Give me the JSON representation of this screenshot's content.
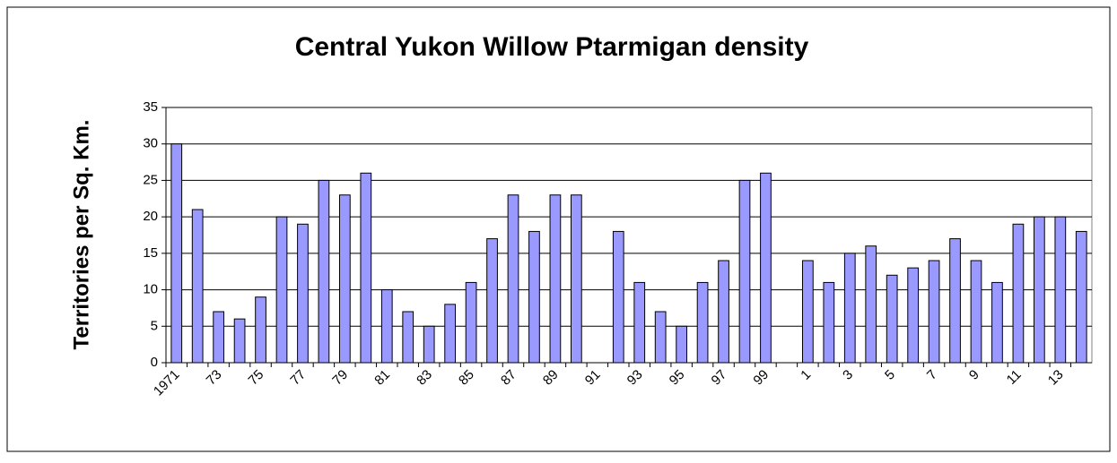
{
  "chart_data": {
    "type": "bar",
    "title": "Central Yukon Willow Ptarmigan density",
    "y_label": "Territories per Sq. Km.",
    "categories": [
      "1971",
      null,
      "73",
      null,
      "75",
      null,
      "77",
      null,
      "79",
      null,
      "81",
      null,
      "83",
      null,
      "85",
      null,
      "87",
      null,
      "89",
      null,
      "91",
      null,
      "93",
      null,
      "95",
      null,
      "97",
      null,
      "99",
      null,
      "1",
      null,
      "3",
      null,
      "5",
      null,
      "7",
      null,
      "9",
      null,
      "11",
      null,
      "13",
      null
    ],
    "values": [
      30,
      21,
      7,
      6,
      9,
      20,
      19,
      25,
      23,
      26,
      10,
      7,
      5,
      8,
      11,
      17,
      23,
      18,
      23,
      23,
      null,
      18,
      11,
      7,
      5,
      11,
      14,
      25,
      26,
      null,
      14,
      11,
      15,
      16,
      12,
      13,
      14,
      17,
      14,
      11,
      19,
      20,
      20,
      18
    ],
    "color": "#9999ff",
    "ylim": [
      0,
      35
    ],
    "yticks": [
      0,
      5,
      10,
      15,
      20,
      25,
      30,
      35
    ],
    "grid": true
  }
}
